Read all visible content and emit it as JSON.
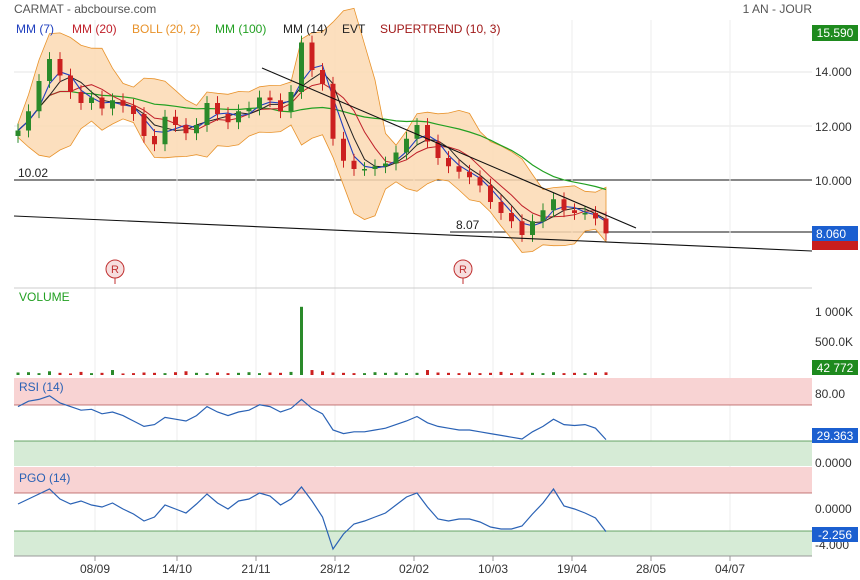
{
  "header": {
    "title": "CARMAT - abcbourse.com",
    "period": "1 AN - JOUR"
  },
  "colors": {
    "mm7": "#1f3fbf",
    "mm20": "#c0202a",
    "boll": "#e8922a",
    "boll_fill": "#fbd9b3",
    "mm100": "#22a022",
    "mm14": "#222222",
    "supertrend": "#a01818",
    "candle_up": "#2a8a2a",
    "candle_down": "#cc2020",
    "rsi_pgo_line": "#2a62b5",
    "red_zone": "#f8d3d3",
    "green_zone": "#d6ebd6",
    "last_price_bg": "#1b5fd0",
    "positive_bg": "#1e8a1e",
    "negative_bg": "#c81e1e"
  },
  "legend": {
    "mm7": "MM (7)",
    "mm20": "MM (20)",
    "boll": "BOLL (20, 2)",
    "mm100": "MM (100)",
    "mm14": "MM (14)",
    "evt": "EVT",
    "supertrend": "SUPERTREND (10, 3)"
  },
  "badges": {
    "top_price": "15.590",
    "last_price": "8.060",
    "volume_last": "42 772",
    "rsi_last": "29.363",
    "pgo_last": "-2.256"
  },
  "annotations": {
    "support_level_1": "10.02",
    "support_level_2": "8.07",
    "event_marker": "R"
  },
  "panels": {
    "volume_label": "VOLUME",
    "rsi_label": "RSI (14)",
    "pgo_label": "PGO (14)"
  },
  "chart_data": [
    {
      "type": "candlestick",
      "title": "CARMAT - abcbourse.com",
      "period": "1 AN - JOUR",
      "x_tick_labels": [
        "08/09",
        "14/10",
        "21/11",
        "28/12",
        "02/02",
        "10/03",
        "19/04",
        "28/05",
        "04/07"
      ],
      "ylim": [
        7.0,
        16.0
      ],
      "y_tick_labels": [
        "14.000",
        "12.000",
        "10.000"
      ],
      "grid": true,
      "close_approx": [
        11.8,
        12.5,
        13.6,
        14.4,
        13.8,
        13.2,
        12.8,
        13.0,
        12.6,
        12.9,
        12.7,
        12.4,
        11.6,
        11.3,
        12.3,
        12.0,
        11.7,
        12.0,
        12.8,
        12.4,
        12.1,
        12.5,
        12.6,
        13.0,
        12.9,
        12.5,
        13.2,
        15.0,
        14.0,
        13.5,
        11.5,
        10.7,
        10.4,
        10.4,
        10.5,
        10.6,
        11.0,
        11.5,
        12.0,
        11.4,
        10.8,
        10.5,
        10.3,
        10.1,
        9.8,
        9.2,
        8.8,
        8.5,
        8.0,
        8.5,
        8.9,
        9.3,
        8.9,
        8.8,
        8.8,
        8.6,
        8.06
      ],
      "horizontal_lines": [
        {
          "label": "10.02",
          "value": 10.02
        },
        {
          "label": "8.07",
          "value": 8.07
        }
      ],
      "series": [
        {
          "name": "MM (7)"
        },
        {
          "name": "MM (20)"
        },
        {
          "name": "BOLL (20, 2)"
        },
        {
          "name": "MM (100)"
        },
        {
          "name": "MM (14)"
        },
        {
          "name": "EVT"
        },
        {
          "name": "SUPERTREND (10, 3)"
        }
      ],
      "last_value": 8.06
    },
    {
      "type": "bar",
      "title": "VOLUME",
      "y_tick_labels": [
        "1 000K",
        "500.0K"
      ],
      "ylim": [
        0,
        1250
      ],
      "values_k_approx": [
        40,
        45,
        30,
        60,
        35,
        25,
        50,
        30,
        35,
        80,
        25,
        30,
        40,
        35,
        30,
        45,
        60,
        35,
        30,
        40,
        30,
        35,
        45,
        30,
        40,
        35,
        50,
        1100,
        80,
        60,
        40,
        35,
        30,
        30,
        45,
        35,
        40,
        30,
        35,
        80,
        40,
        35,
        30,
        40,
        30,
        35,
        50,
        30,
        40,
        35,
        30,
        45,
        30,
        35,
        30,
        40,
        42.772
      ],
      "last_value": 42772
    },
    {
      "type": "line",
      "title": "RSI (14)",
      "ylim": [
        0,
        100
      ],
      "y_tick_labels": [
        "80.00",
        "0.0000"
      ],
      "zones": {
        "overbought": 70,
        "oversold": 30
      },
      "values_approx": [
        66,
        72,
        74,
        78,
        70,
        66,
        62,
        63,
        58,
        60,
        56,
        50,
        44,
        46,
        54,
        52,
        50,
        56,
        66,
        60,
        56,
        60,
        62,
        68,
        66,
        60,
        64,
        74,
        64,
        58,
        40,
        36,
        38,
        38,
        40,
        42,
        46,
        50,
        55,
        48,
        44,
        42,
        40,
        40,
        38,
        36,
        34,
        32,
        30,
        38,
        44,
        52,
        46,
        45,
        46,
        42,
        29.363
      ],
      "last_value": 29.363
    },
    {
      "type": "line",
      "title": "PGO (14)",
      "ylim": [
        -5.0,
        5.0
      ],
      "y_tick_labels": [
        "0.0000",
        "-4.000"
      ],
      "zones": {
        "upper": 2,
        "lower": -2
      },
      "values_approx": [
        0.5,
        1.0,
        1.5,
        2.0,
        1.0,
        0.5,
        0.8,
        0.4,
        0.2,
        0.6,
        0.0,
        -0.5,
        -1.2,
        -0.8,
        0.4,
        0.0,
        -0.4,
        0.5,
        1.5,
        0.6,
        0.0,
        0.8,
        1.0,
        1.6,
        1.3,
        0.4,
        1.0,
        2.2,
        0.8,
        -0.8,
        -4.0,
        -2.5,
        -1.5,
        -1.2,
        -0.8,
        -0.4,
        0.4,
        1.2,
        1.6,
        0.2,
        -1.0,
        -1.2,
        -1.0,
        -1.0,
        -1.3,
        -1.8,
        -2.0,
        -2.0,
        -1.7,
        -0.5,
        0.6,
        2.0,
        0.3,
        0.0,
        -0.4,
        -0.9,
        -2.256
      ],
      "last_value": -2.256
    }
  ]
}
